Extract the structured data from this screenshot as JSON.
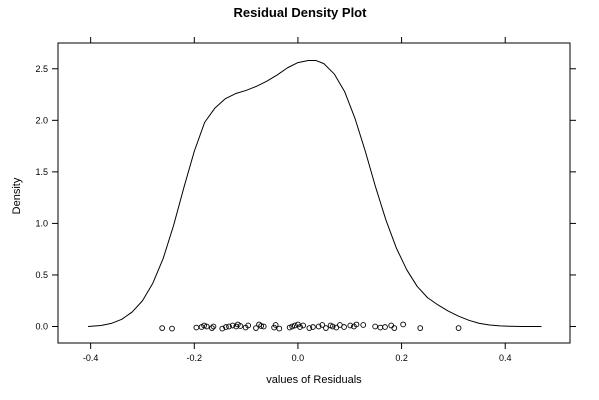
{
  "chart_data": {
    "type": "line",
    "title": "Residual Density Plot",
    "xlabel": "values of Residuals",
    "ylabel": "Density",
    "xlim": [
      -0.463,
      0.525
    ],
    "ylim": [
      -0.16,
      2.75
    ],
    "x_ticks": [
      -0.4,
      -0.2,
      0.0,
      0.2,
      0.4
    ],
    "x_tick_labels": [
      "-0.4",
      "-0.2",
      "0.0",
      "0.2",
      "0.4"
    ],
    "y_ticks": [
      0.0,
      0.5,
      1.0,
      1.5,
      2.0,
      2.5
    ],
    "y_tick_labels": [
      "0.0",
      "0.5",
      "1.0",
      "1.5",
      "2.0",
      "2.5"
    ],
    "grid": false,
    "series": [
      {
        "kind": "density-curve",
        "color": "#000000",
        "x": [
          -0.405,
          -0.38,
          -0.36,
          -0.34,
          -0.32,
          -0.3,
          -0.28,
          -0.26,
          -0.24,
          -0.22,
          -0.2,
          -0.18,
          -0.16,
          -0.14,
          -0.12,
          -0.1,
          -0.08,
          -0.06,
          -0.04,
          -0.02,
          0.0,
          0.02,
          0.035,
          0.05,
          0.07,
          0.09,
          0.11,
          0.13,
          0.15,
          0.17,
          0.19,
          0.21,
          0.23,
          0.25,
          0.27,
          0.29,
          0.31,
          0.33,
          0.35,
          0.37,
          0.39,
          0.41,
          0.43,
          0.45,
          0.47
        ],
        "y": [
          0.0,
          0.01,
          0.03,
          0.07,
          0.14,
          0.25,
          0.42,
          0.66,
          0.98,
          1.35,
          1.7,
          1.98,
          2.12,
          2.21,
          2.26,
          2.29,
          2.33,
          2.38,
          2.44,
          2.51,
          2.56,
          2.58,
          2.58,
          2.55,
          2.45,
          2.28,
          2.02,
          1.7,
          1.35,
          1.03,
          0.76,
          0.55,
          0.39,
          0.28,
          0.21,
          0.15,
          0.1,
          0.06,
          0.03,
          0.015,
          0.006,
          0.002,
          0.0,
          0.0,
          0.0
        ]
      },
      {
        "kind": "rug-points",
        "marker": "open-circle",
        "color": "#000000",
        "x": [
          -0.262,
          -0.243,
          -0.196,
          -0.186,
          -0.181,
          -0.176,
          -0.166,
          -0.163,
          -0.146,
          -0.139,
          -0.133,
          -0.126,
          -0.119,
          -0.116,
          -0.111,
          -0.101,
          -0.096,
          -0.081,
          -0.075,
          -0.071,
          -0.066,
          -0.046,
          -0.043,
          -0.036,
          -0.016,
          -0.011,
          -0.006,
          0.0,
          0.004,
          0.01,
          0.022,
          0.029,
          0.04,
          0.047,
          0.054,
          0.063,
          0.067,
          0.074,
          0.081,
          0.089,
          0.101,
          0.108,
          0.113,
          0.126,
          0.149,
          0.159,
          0.168,
          0.18,
          0.186,
          0.203,
          0.236,
          0.31
        ],
        "y": [
          -0.015,
          -0.02,
          -0.01,
          -0.005,
          0.01,
          0.0,
          -0.015,
          0.0,
          -0.02,
          -0.005,
          0.0,
          0.01,
          0.0,
          0.02,
          0.005,
          -0.01,
          0.01,
          -0.015,
          0.02,
          0.005,
          0.0,
          -0.01,
          0.015,
          -0.02,
          -0.01,
          0.0,
          0.01,
          0.02,
          -0.005,
          0.01,
          -0.015,
          -0.005,
          0.0,
          0.015,
          -0.015,
          0.01,
          0.0,
          -0.01,
          0.015,
          -0.005,
          0.01,
          0.0,
          0.02,
          0.015,
          0.0,
          -0.01,
          -0.005,
          0.01,
          -0.015,
          0.02,
          -0.015,
          -0.015
        ]
      }
    ]
  }
}
